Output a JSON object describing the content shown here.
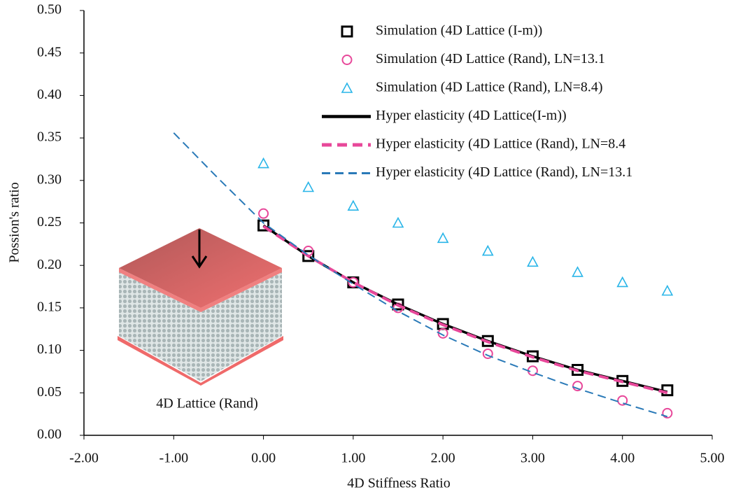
{
  "chart_data": {
    "type": "line",
    "x_label": "4D Stiffness Ratio",
    "y_label": "Possion's ratio",
    "annotation": "4D Lattice (Rand)",
    "xlim": [
      -2,
      5
    ],
    "ylim": [
      0,
      0.5
    ],
    "xticks": [
      {
        "value": -2,
        "label": "-2.00"
      },
      {
        "value": -1,
        "label": "-1.00"
      },
      {
        "value": 0,
        "label": "0.00"
      },
      {
        "value": 1,
        "label": "1.00"
      },
      {
        "value": 2,
        "label": "2.00"
      },
      {
        "value": 3,
        "label": "3.00"
      },
      {
        "value": 4,
        "label": "4.00"
      },
      {
        "value": 5,
        "label": "5.00"
      }
    ],
    "yticks": [
      {
        "value": 0,
        "label": "0.00"
      },
      {
        "value": 0.05,
        "label": "0.05"
      },
      {
        "value": 0.1,
        "label": "0.10"
      },
      {
        "value": 0.15,
        "label": "0.15"
      },
      {
        "value": 0.2,
        "label": "0.20"
      },
      {
        "value": 0.25,
        "label": "0.25"
      },
      {
        "value": 0.3,
        "label": "0.30"
      },
      {
        "value": 0.35,
        "label": "0.35"
      },
      {
        "value": 0.4,
        "label": "0.40"
      },
      {
        "value": 0.45,
        "label": "0.45"
      },
      {
        "value": 0.5,
        "label": "0.50"
      }
    ],
    "series": [
      {
        "name": "Hyper elasticity (4D Lattice(I-m))",
        "color": "#000000",
        "style": "solid",
        "x": [
          0,
          0.5,
          1,
          1.5,
          2,
          2.5,
          3,
          3.5,
          4,
          4.5
        ],
        "values": [
          0.247,
          0.211,
          0.18,
          0.154,
          0.131,
          0.111,
          0.093,
          0.077,
          0.064,
          0.051
        ]
      },
      {
        "name": "Hyper elasticity (4D Lattice (Rand), LN=8.4",
        "color": "#e8489a",
        "style": "dashed",
        "x": [
          0,
          0.5,
          1,
          1.5,
          2,
          2.5,
          3,
          3.5,
          4,
          4.5
        ],
        "values": [
          0.246,
          0.211,
          0.18,
          0.153,
          0.13,
          0.11,
          0.092,
          0.076,
          0.063,
          0.05
        ]
      },
      {
        "name": "Hyper elasticity (4D Lattice (Rand), LN=13.1",
        "color": "#2a7ab8",
        "style": "dashed-thin",
        "x": [
          -1,
          -0.5,
          0,
          0.5,
          1,
          1.5,
          2,
          2.5,
          3,
          3.5,
          4,
          4.5
        ],
        "values": [
          0.356,
          0.302,
          0.25,
          0.212,
          0.178,
          0.146,
          0.118,
          0.094,
          0.074,
          0.055,
          0.038,
          0.022
        ]
      },
      {
        "name": "Simulation (4D Lattice (I-m))",
        "color": "#000000",
        "marker": "square",
        "x": [
          0,
          0.5,
          1,
          1.5,
          2,
          2.5,
          3,
          3.5,
          4,
          4.5
        ],
        "values": [
          0.247,
          0.211,
          0.18,
          0.154,
          0.131,
          0.111,
          0.093,
          0.077,
          0.064,
          0.053
        ]
      },
      {
        "name": "Simulation (4D Lattice (Rand), LN=13.1",
        "color": "#e8489a",
        "marker": "circle",
        "x": [
          0,
          0.5,
          1,
          1.5,
          2,
          2.5,
          3,
          3.5,
          4,
          4.5
        ],
        "values": [
          0.261,
          0.217,
          0.18,
          0.15,
          0.12,
          0.096,
          0.076,
          0.058,
          0.041,
          0.026
        ]
      },
      {
        "name": "Simulation (4D Lattice (Rand), LN=8.4)",
        "color": "#29b5e8",
        "marker": "triangle",
        "x": [
          0,
          0.5,
          1,
          1.5,
          2,
          2.5,
          3,
          3.5,
          4,
          4.5
        ],
        "values": [
          0.32,
          0.292,
          0.27,
          0.25,
          0.232,
          0.217,
          0.204,
          0.192,
          0.18,
          0.17
        ]
      }
    ]
  }
}
